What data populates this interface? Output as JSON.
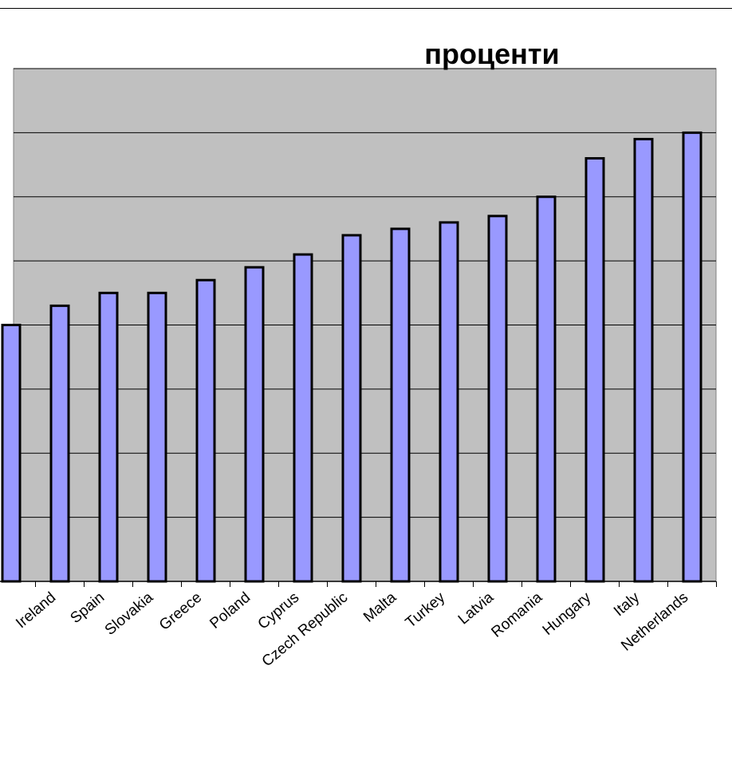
{
  "chart_data": {
    "type": "bar",
    "title": "проценти",
    "categories": [
      null,
      "Ireland",
      "Spain",
      "Slovakia",
      "Greece",
      "Poland",
      "Cyprus",
      "Czech Republic",
      "Malta",
      "Turkey",
      "Latvia",
      "Romania",
      "Hungary",
      "Italy",
      "Netherlands"
    ],
    "values": [
      4.0,
      4.3,
      4.5,
      4.5,
      4.7,
      4.9,
      5.1,
      5.4,
      5.5,
      5.6,
      5.7,
      6.0,
      6.6,
      6.9,
      7.0
    ],
    "color": "#9999ff",
    "ylim": [
      0,
      8
    ],
    "yticks": [
      0,
      1,
      2,
      3,
      4,
      5,
      6,
      7,
      8
    ],
    "grid": true
  }
}
